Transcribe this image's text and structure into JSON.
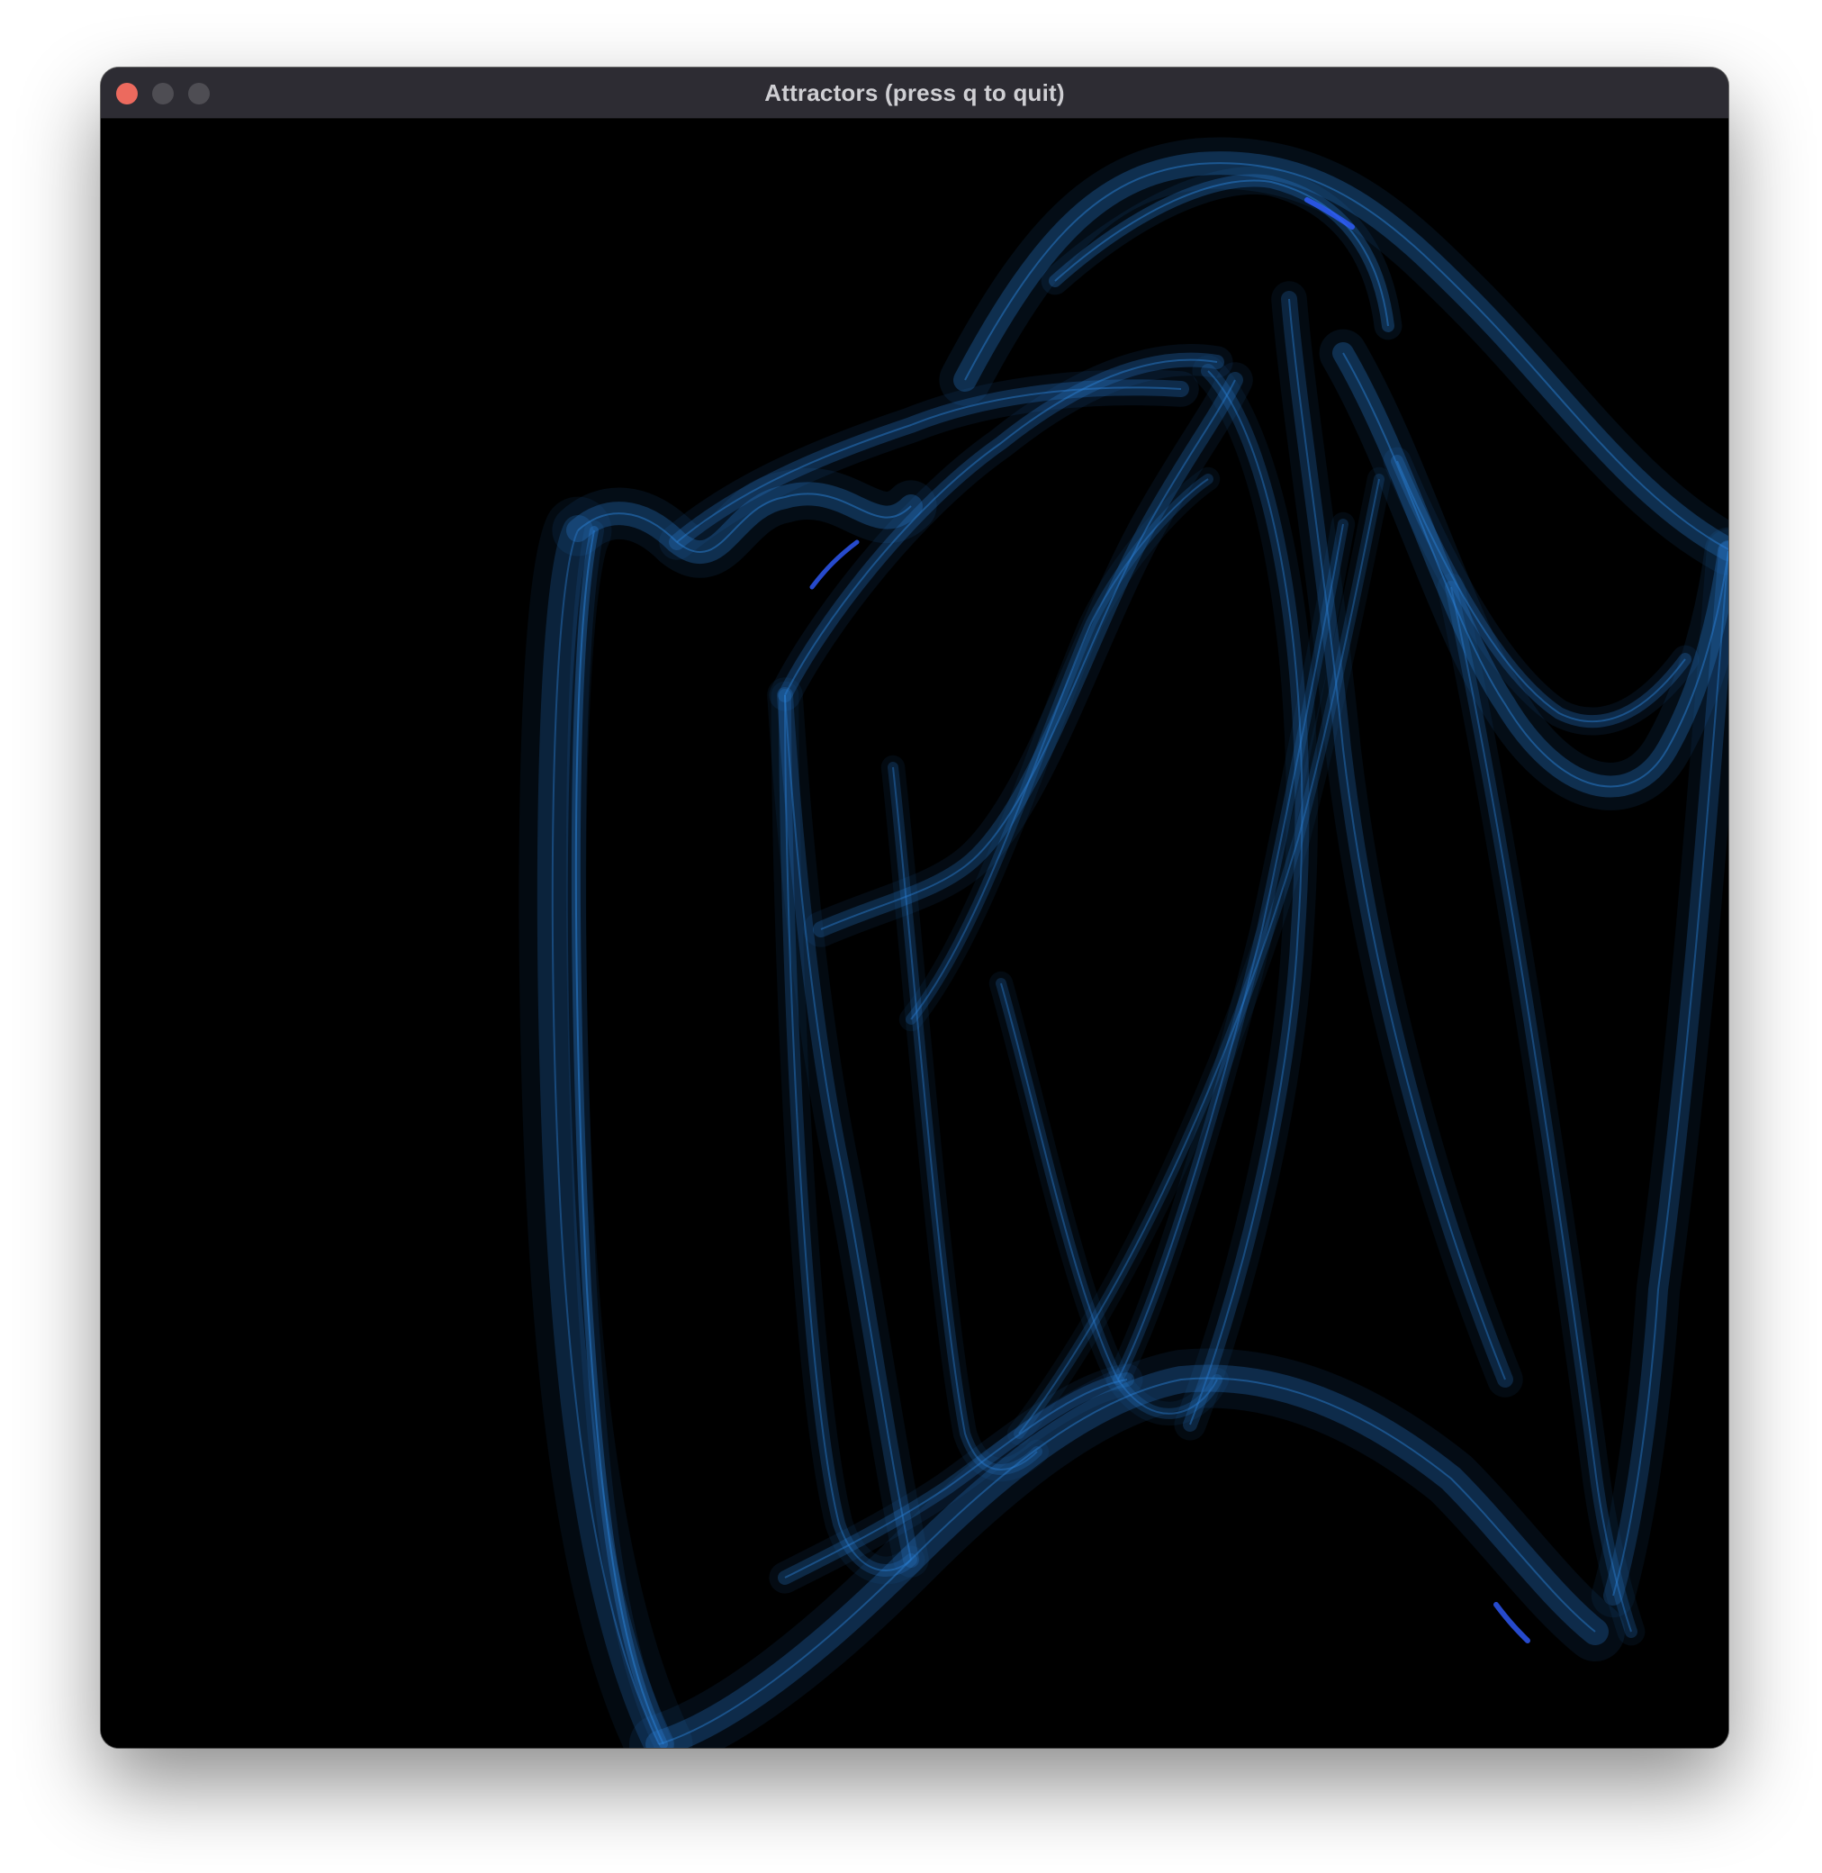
{
  "window": {
    "title": "Attractors (press q to quit)",
    "controls": {
      "close_color": "#ec6a5e",
      "minimize_color": "#4e4d53",
      "zoom_color": "#4e4d53"
    }
  },
  "canvas": {
    "background": "#000000",
    "stroke_color": "#2a7fd4",
    "highlight_color": "#2f5cff",
    "content": "strange-attractor"
  }
}
